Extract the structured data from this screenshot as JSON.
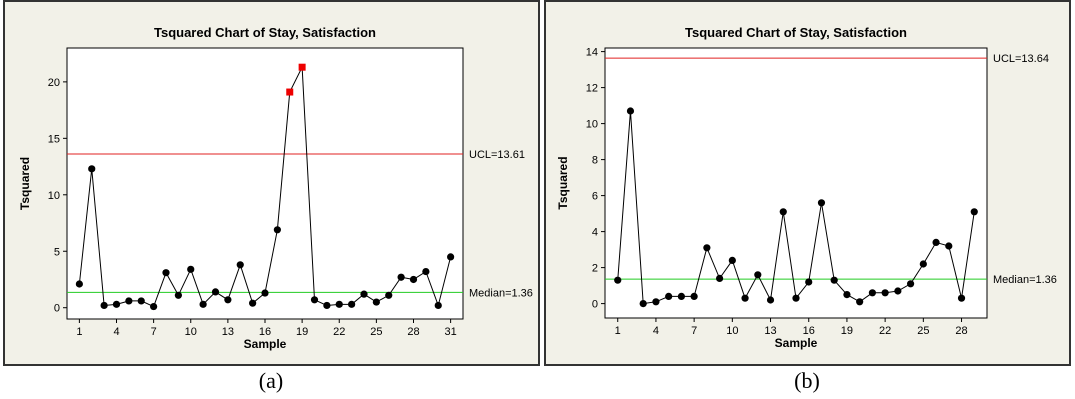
{
  "captions": [
    "(a)",
    "(b)"
  ],
  "colors": {
    "ucl": "#e02020",
    "median": "#22cc22",
    "point": "#000000",
    "outlier": "#ee0000"
  },
  "chart_data": [
    {
      "type": "line",
      "title": "Tsquared Chart of Stay, Satisfaction",
      "xlabel": "Sample",
      "ylabel": "Tsquared",
      "xlim": [
        0,
        32
      ],
      "ylim": [
        -1,
        23
      ],
      "xticks": [
        1,
        4,
        7,
        10,
        13,
        16,
        19,
        22,
        25,
        28,
        31
      ],
      "yticks": [
        0,
        5,
        10,
        15,
        20
      ],
      "ucl": {
        "value": 13.61,
        "label": "UCL=13.61"
      },
      "median": {
        "value": 1.36,
        "label": "Median=1.36"
      },
      "x": [
        1,
        2,
        3,
        4,
        5,
        6,
        7,
        8,
        9,
        10,
        11,
        12,
        13,
        14,
        15,
        16,
        17,
        18,
        19,
        20,
        21,
        22,
        23,
        24,
        25,
        26,
        27,
        28,
        29,
        30,
        31
      ],
      "values": [
        2.1,
        12.3,
        0.2,
        0.3,
        0.6,
        0.6,
        0.1,
        3.1,
        1.1,
        3.4,
        0.3,
        1.4,
        0.7,
        3.8,
        0.4,
        1.3,
        6.9,
        19.1,
        21.3,
        0.7,
        0.2,
        0.3,
        0.3,
        1.2,
        0.5,
        1.1,
        2.7,
        2.5,
        3.2,
        0.2,
        4.5
      ],
      "outliers": [
        18,
        19
      ]
    },
    {
      "type": "line",
      "title": "Tsquared Chart of Stay, Satisfaction",
      "xlabel": "Sample",
      "ylabel": "Tsquared",
      "xlim": [
        0,
        30
      ],
      "ylim": [
        -0.8,
        14.2
      ],
      "xticks": [
        1,
        4,
        7,
        10,
        13,
        16,
        19,
        22,
        25,
        28
      ],
      "yticks": [
        0,
        2,
        4,
        6,
        8,
        10,
        12,
        14
      ],
      "ucl": {
        "value": 13.64,
        "label": "UCL=13.64"
      },
      "median": {
        "value": 1.36,
        "label": "Median=1.36"
      },
      "x": [
        1,
        2,
        3,
        4,
        5,
        6,
        7,
        8,
        9,
        10,
        11,
        12,
        13,
        14,
        15,
        16,
        17,
        18,
        19,
        20,
        21,
        22,
        23,
        24,
        25,
        26,
        27,
        28,
        29
      ],
      "values": [
        1.3,
        10.7,
        0.0,
        0.1,
        0.4,
        0.4,
        0.4,
        3.1,
        1.4,
        2.4,
        0.3,
        1.6,
        0.2,
        5.1,
        0.3,
        1.2,
        5.6,
        1.3,
        0.5,
        0.1,
        0.6,
        0.6,
        0.7,
        1.1,
        2.2,
        3.4,
        3.2,
        0.3,
        5.1
      ],
      "outliers": []
    }
  ]
}
